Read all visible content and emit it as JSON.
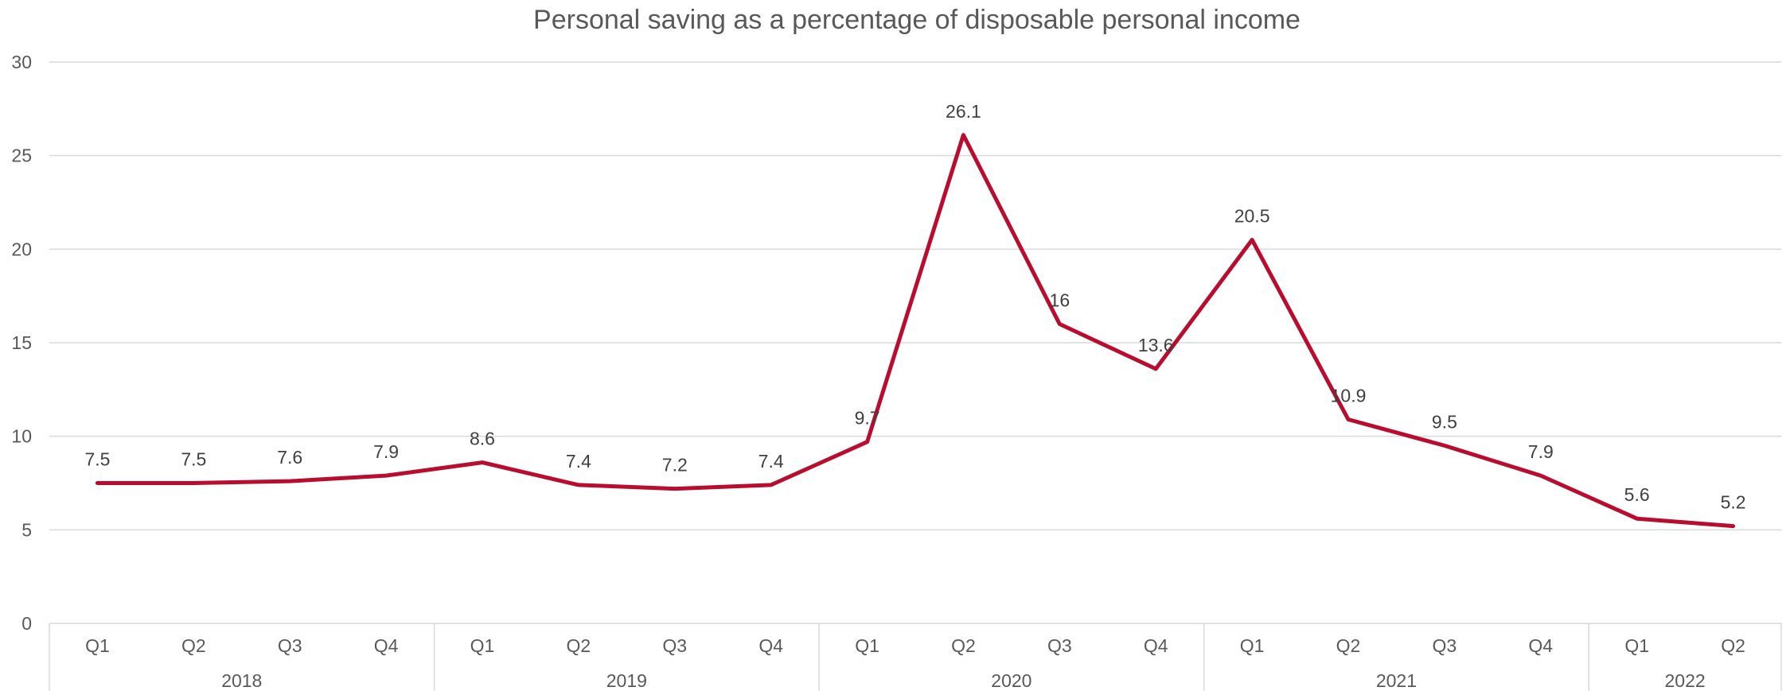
{
  "chart_data": {
    "type": "line",
    "title": "Personal saving as a percentage of disposable personal income",
    "xlabel": "",
    "ylabel": "",
    "ylim": [
      0,
      30
    ],
    "yticks": [
      "0",
      "5",
      "10",
      "15",
      "20",
      "25",
      "30"
    ],
    "grid": true,
    "legend": "none",
    "color": "#BA0C2F",
    "groups": [
      {
        "label": "2018",
        "quarters": [
          "Q1",
          "Q2",
          "Q3",
          "Q4"
        ]
      },
      {
        "label": "2019",
        "quarters": [
          "Q1",
          "Q2",
          "Q3",
          "Q4"
        ]
      },
      {
        "label": "2020",
        "quarters": [
          "Q1",
          "Q2",
          "Q3",
          "Q4"
        ]
      },
      {
        "label": "2021",
        "quarters": [
          "Q1",
          "Q2",
          "Q3",
          "Q4"
        ]
      },
      {
        "label": "2022",
        "quarters": [
          "Q1",
          "Q2"
        ]
      }
    ],
    "series": [
      {
        "values": [
          7.5,
          7.5,
          7.6,
          7.9,
          8.6,
          7.4,
          7.2,
          7.4,
          9.7,
          26.1,
          16,
          13.6,
          20.5,
          10.9,
          9.5,
          7.9,
          5.6,
          5.2
        ],
        "labels": [
          "7.5",
          "7.5",
          "7.6",
          "7.9",
          "8.6",
          "7.4",
          "7.2",
          "7.4",
          "9.7",
          "26.1",
          "16",
          "13.6",
          "20.5",
          "10.9",
          "9.5",
          "7.9",
          "5.6",
          "5.2"
        ]
      }
    ]
  }
}
